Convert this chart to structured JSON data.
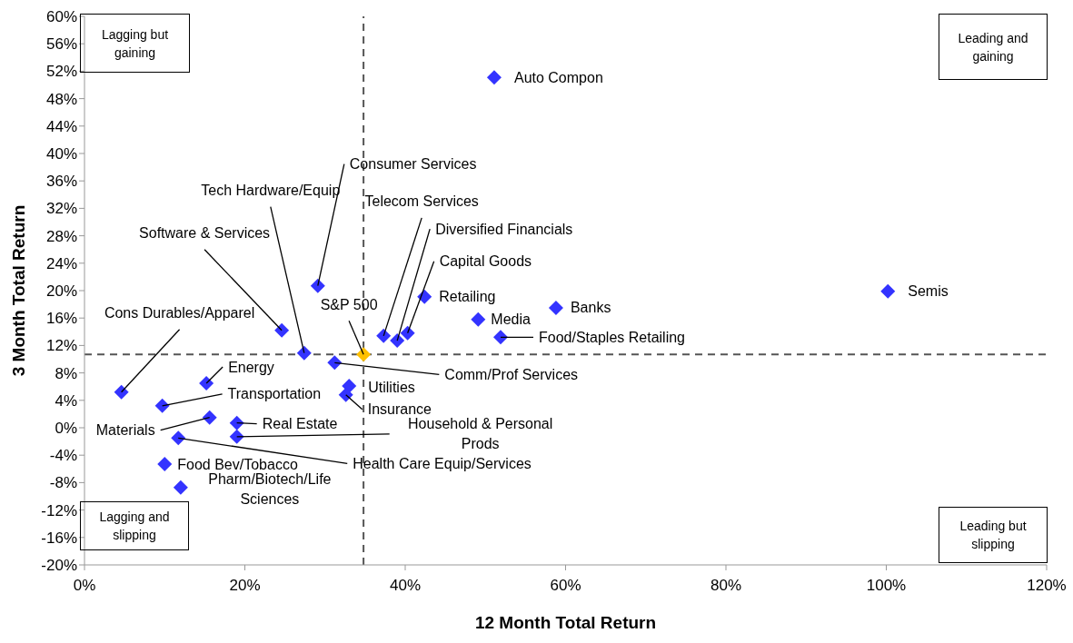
{
  "chart_data": {
    "type": "scatter",
    "xlabel": "12 Month Total Return",
    "ylabel": "3 Month Total Return",
    "xlim": [
      0,
      120
    ],
    "ylim": [
      -20,
      60
    ],
    "xticks": [
      {
        "value": 0,
        "label": "0%"
      },
      {
        "value": 20,
        "label": "20%"
      },
      {
        "value": 40,
        "label": "40%"
      },
      {
        "value": 60,
        "label": "60%"
      },
      {
        "value": 80,
        "label": "80%"
      },
      {
        "value": 100,
        "label": "100%"
      },
      {
        "value": 120,
        "label": "120%"
      }
    ],
    "yticks": [
      {
        "value": -20,
        "label": "-20%"
      },
      {
        "value": -16,
        "label": "-16%"
      },
      {
        "value": -12,
        "label": "-12%"
      },
      {
        "value": -8,
        "label": "-8%"
      },
      {
        "value": -4,
        "label": "-4%"
      },
      {
        "value": 0,
        "label": "0%"
      },
      {
        "value": 4,
        "label": "4%"
      },
      {
        "value": 8,
        "label": "8%"
      },
      {
        "value": 12,
        "label": "12%"
      },
      {
        "value": 16,
        "label": "16%"
      },
      {
        "value": 20,
        "label": "20%"
      },
      {
        "value": 24,
        "label": "24%"
      },
      {
        "value": 28,
        "label": "28%"
      },
      {
        "value": 32,
        "label": "32%"
      },
      {
        "value": 36,
        "label": "36%"
      },
      {
        "value": 40,
        "label": "40%"
      },
      {
        "value": 44,
        "label": "44%"
      },
      {
        "value": 48,
        "label": "48%"
      },
      {
        "value": 52,
        "label": "52%"
      },
      {
        "value": 56,
        "label": "56%"
      },
      {
        "value": 60,
        "label": "60%"
      }
    ],
    "grid": false,
    "legend": false,
    "marker": "diamond",
    "ref_lines": [
      {
        "axis": "x",
        "value": 34.8,
        "color": "#555555",
        "line_style": "dashed"
      },
      {
        "axis": "y",
        "value": 10.7,
        "color": "#555555",
        "line_style": "dashed"
      }
    ],
    "annotations": [
      "Lagging but gaining",
      "Leading and gaining",
      "Lagging and slipping",
      "Leading but slipping"
    ],
    "series": [
      {
        "name": "Cons Durables/Apparel",
        "color": "#3333ff",
        "x": [
          4.6
        ],
        "values": [
          5.2
        ]
      },
      {
        "name": "Energy",
        "color": "#3333ff",
        "x": [
          15.2
        ],
        "values": [
          6.5
        ]
      },
      {
        "name": "Transportation",
        "color": "#3333ff",
        "x": [
          9.7
        ],
        "values": [
          3.2
        ]
      },
      {
        "name": "Materials",
        "color": "#3333ff",
        "x": [
          15.6
        ],
        "values": [
          1.5
        ]
      },
      {
        "name": "Real Estate",
        "color": "#3333ff",
        "x": [
          19.0
        ],
        "values": [
          0.7
        ]
      },
      {
        "name": "Household & Personal Prods",
        "color": "#3333ff",
        "x": [
          19.0
        ],
        "values": [
          -1.3
        ]
      },
      {
        "name": "Health Care Equip/Services",
        "color": "#3333ff",
        "x": [
          11.7
        ],
        "values": [
          -1.5
        ]
      },
      {
        "name": "Food Bev/Tobacco",
        "color": "#3333ff",
        "x": [
          10.0
        ],
        "values": [
          -5.3
        ]
      },
      {
        "name": "Pharm/Biotech/Life Sciences",
        "color": "#3333ff",
        "x": [
          12.0
        ],
        "values": [
          -8.7
        ]
      },
      {
        "name": "Software & Services",
        "color": "#3333ff",
        "x": [
          24.6
        ],
        "values": [
          14.2
        ]
      },
      {
        "name": "Tech Hardware/Equip",
        "color": "#3333ff",
        "x": [
          27.4
        ],
        "values": [
          10.9
        ]
      },
      {
        "name": "Consumer Services",
        "color": "#3333ff",
        "x": [
          29.1
        ],
        "values": [
          20.7
        ]
      },
      {
        "name": "Comm/Prof Services",
        "color": "#3333ff",
        "x": [
          31.2
        ],
        "values": [
          9.5
        ]
      },
      {
        "name": "Utilities",
        "color": "#3333ff",
        "x": [
          33.0
        ],
        "values": [
          6.1
        ]
      },
      {
        "name": "Insurance",
        "color": "#3333ff",
        "x": [
          32.6
        ],
        "values": [
          4.8
        ]
      },
      {
        "name": "S&P 500",
        "color": "#ffc000",
        "x": [
          34.8
        ],
        "values": [
          10.7
        ]
      },
      {
        "name": "Telecom Services",
        "color": "#3333ff",
        "x": [
          37.3
        ],
        "values": [
          13.4
        ]
      },
      {
        "name": "Diversified Financials",
        "color": "#3333ff",
        "x": [
          39.0
        ],
        "values": [
          12.7
        ]
      },
      {
        "name": "Capital Goods",
        "color": "#3333ff",
        "x": [
          40.3
        ],
        "values": [
          13.8
        ]
      },
      {
        "name": "Retailing",
        "color": "#3333ff",
        "x": [
          42.4
        ],
        "values": [
          19.1
        ]
      },
      {
        "name": "Media",
        "color": "#3333ff",
        "x": [
          49.1
        ],
        "values": [
          15.8
        ]
      },
      {
        "name": "Banks",
        "color": "#3333ff",
        "x": [
          58.8
        ],
        "values": [
          17.5
        ]
      },
      {
        "name": "Food/Staples Retailing",
        "color": "#3333ff",
        "x": [
          51.9
        ],
        "values": [
          13.2
        ]
      },
      {
        "name": "Auto Compon",
        "color": "#3333ff",
        "x": [
          51.1
        ],
        "values": [
          51.1
        ]
      },
      {
        "name": "Semis",
        "color": "#3333ff",
        "x": [
          100.2
        ],
        "values": [
          19.9
        ]
      }
    ]
  }
}
